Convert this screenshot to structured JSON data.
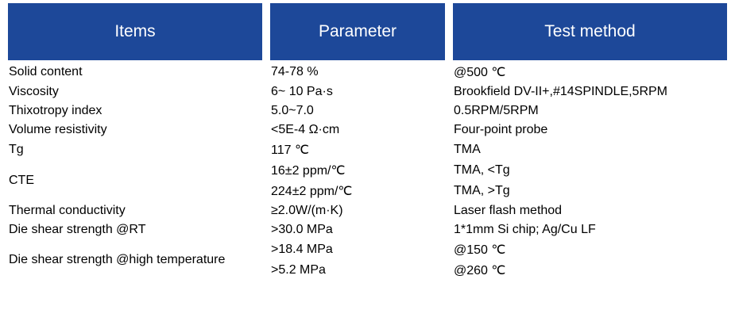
{
  "table": {
    "headers": {
      "items": "Items",
      "parameter": "Parameter",
      "test_method": "Test method"
    },
    "rows": [
      {
        "item": "Solid content",
        "parameter": "74-78 %",
        "test_method": "@500 ℃"
      },
      {
        "item": "Viscosity",
        "parameter": "6~ 10 Pa·s",
        "test_method": "Brookfield DV-II+,#14SPINDLE,5RPM"
      },
      {
        "item": "Thixotropy index",
        "parameter": "5.0~7.0",
        "test_method": "0.5RPM/5RPM"
      },
      {
        "item": "Volume resistivity",
        "parameter": "<5E-4 Ω·cm",
        "test_method": "Four-point probe"
      },
      {
        "item": "Tg",
        "parameter": "117 ℃",
        "test_method": "TMA"
      },
      {
        "item": "CTE",
        "item_rowspan": 2,
        "parameter": "16±2 ppm/℃",
        "test_method": "TMA, <Tg"
      },
      {
        "parameter": "224±2 ppm/℃",
        "test_method": "TMA, >Tg"
      },
      {
        "item": "Thermal conductivity",
        "parameter": "≥2.0W/(m·K)",
        "test_method": "Laser flash method"
      },
      {
        "item": "Die shear strength @RT",
        "parameter": ">30.0 MPa",
        "test_method": "1*1mm Si chip; Ag/Cu LF"
      },
      {
        "item": "Die shear strength @high temperature",
        "item_rowspan": 2,
        "parameter": ">18.4 MPa",
        "test_method": "@150 ℃"
      },
      {
        "parameter": ">5.2 MPa",
        "test_method": "@260 ℃"
      }
    ]
  },
  "chart_data": {
    "type": "table",
    "columns": [
      "Items",
      "Parameter",
      "Test method"
    ],
    "rows": [
      [
        "Solid content",
        "74-78 %",
        "@500 ℃"
      ],
      [
        "Viscosity",
        "6~ 10 Pa·s",
        "Brookfield DV-II+,#14SPINDLE,5RPM"
      ],
      [
        "Thixotropy index",
        "5.0~7.0",
        "0.5RPM/5RPM"
      ],
      [
        "Volume resistivity",
        "<5E-4 Ω·cm",
        "Four-point probe"
      ],
      [
        "Tg",
        "117 ℃",
        "TMA"
      ],
      [
        "CTE",
        "16±2 ppm/℃",
        "TMA, <Tg"
      ],
      [
        "CTE",
        "224±2 ppm/℃",
        "TMA, >Tg"
      ],
      [
        "Thermal conductivity",
        "≥2.0W/(m·K)",
        "Laser flash method"
      ],
      [
        "Die shear strength @RT",
        ">30.0 MPa",
        "1*1mm Si chip; Ag/Cu LF"
      ],
      [
        "Die shear strength @high temperature",
        ">18.4 MPa",
        "@150 ℃"
      ],
      [
        "Die shear strength @high temperature",
        ">5.2 MPa",
        "@260 ℃"
      ]
    ]
  },
  "colors": {
    "header_blue": "#1d4899",
    "row_gray": "#eeefef",
    "header_text": "#ffffff",
    "body_text": "#111111"
  }
}
